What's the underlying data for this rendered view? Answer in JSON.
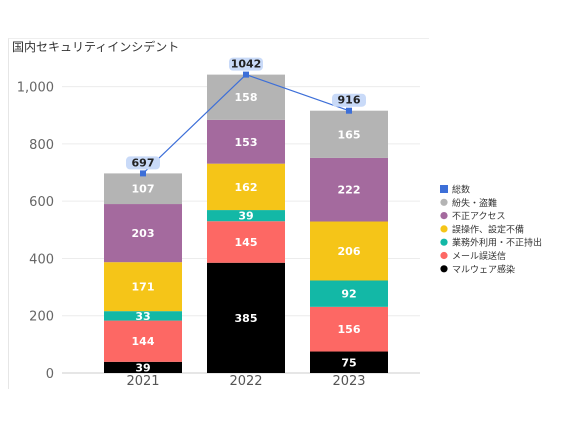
{
  "chart_data": {
    "type": "bar",
    "stacked": true,
    "title": "国内セキュリティインシデント",
    "categories": [
      "2021",
      "2022",
      "2023"
    ],
    "ylim": [
      0,
      1100
    ],
    "yticks": [
      0,
      200,
      400,
      600,
      800,
      1000
    ],
    "ytick_labels": [
      "0",
      "200",
      "400",
      "600",
      "800",
      "1,000"
    ],
    "grid": true,
    "legend_position": "right",
    "series": [
      {
        "name": "マルウェア感染",
        "color": "#000000",
        "label_color": "#ffffff",
        "values": [
          39,
          385,
          75
        ]
      },
      {
        "name": "メール誤送信",
        "color": "#fd6864",
        "label_color": "#ffffff",
        "values": [
          144,
          145,
          156
        ]
      },
      {
        "name": "業務外利用・不正持出",
        "color": "#13b8a6",
        "label_color": "#ffffff",
        "values": [
          33,
          39,
          92
        ]
      },
      {
        "name": "誤操作、設定不備",
        "color": "#f5c518",
        "label_color": "#ffffff",
        "values": [
          171,
          162,
          206
        ]
      },
      {
        "name": "不正アクセス",
        "color": "#a46a9e",
        "label_color": "#ffffff",
        "values": [
          203,
          153,
          222
        ]
      },
      {
        "name": "紛失・盗難",
        "color": "#b4b4b4",
        "label_color": "#ffffff",
        "values": [
          107,
          158,
          165
        ]
      }
    ],
    "total_series": {
      "name": "総数",
      "type": "line",
      "color": "#3d6fd8",
      "values": [
        697,
        1042,
        916
      ]
    }
  }
}
